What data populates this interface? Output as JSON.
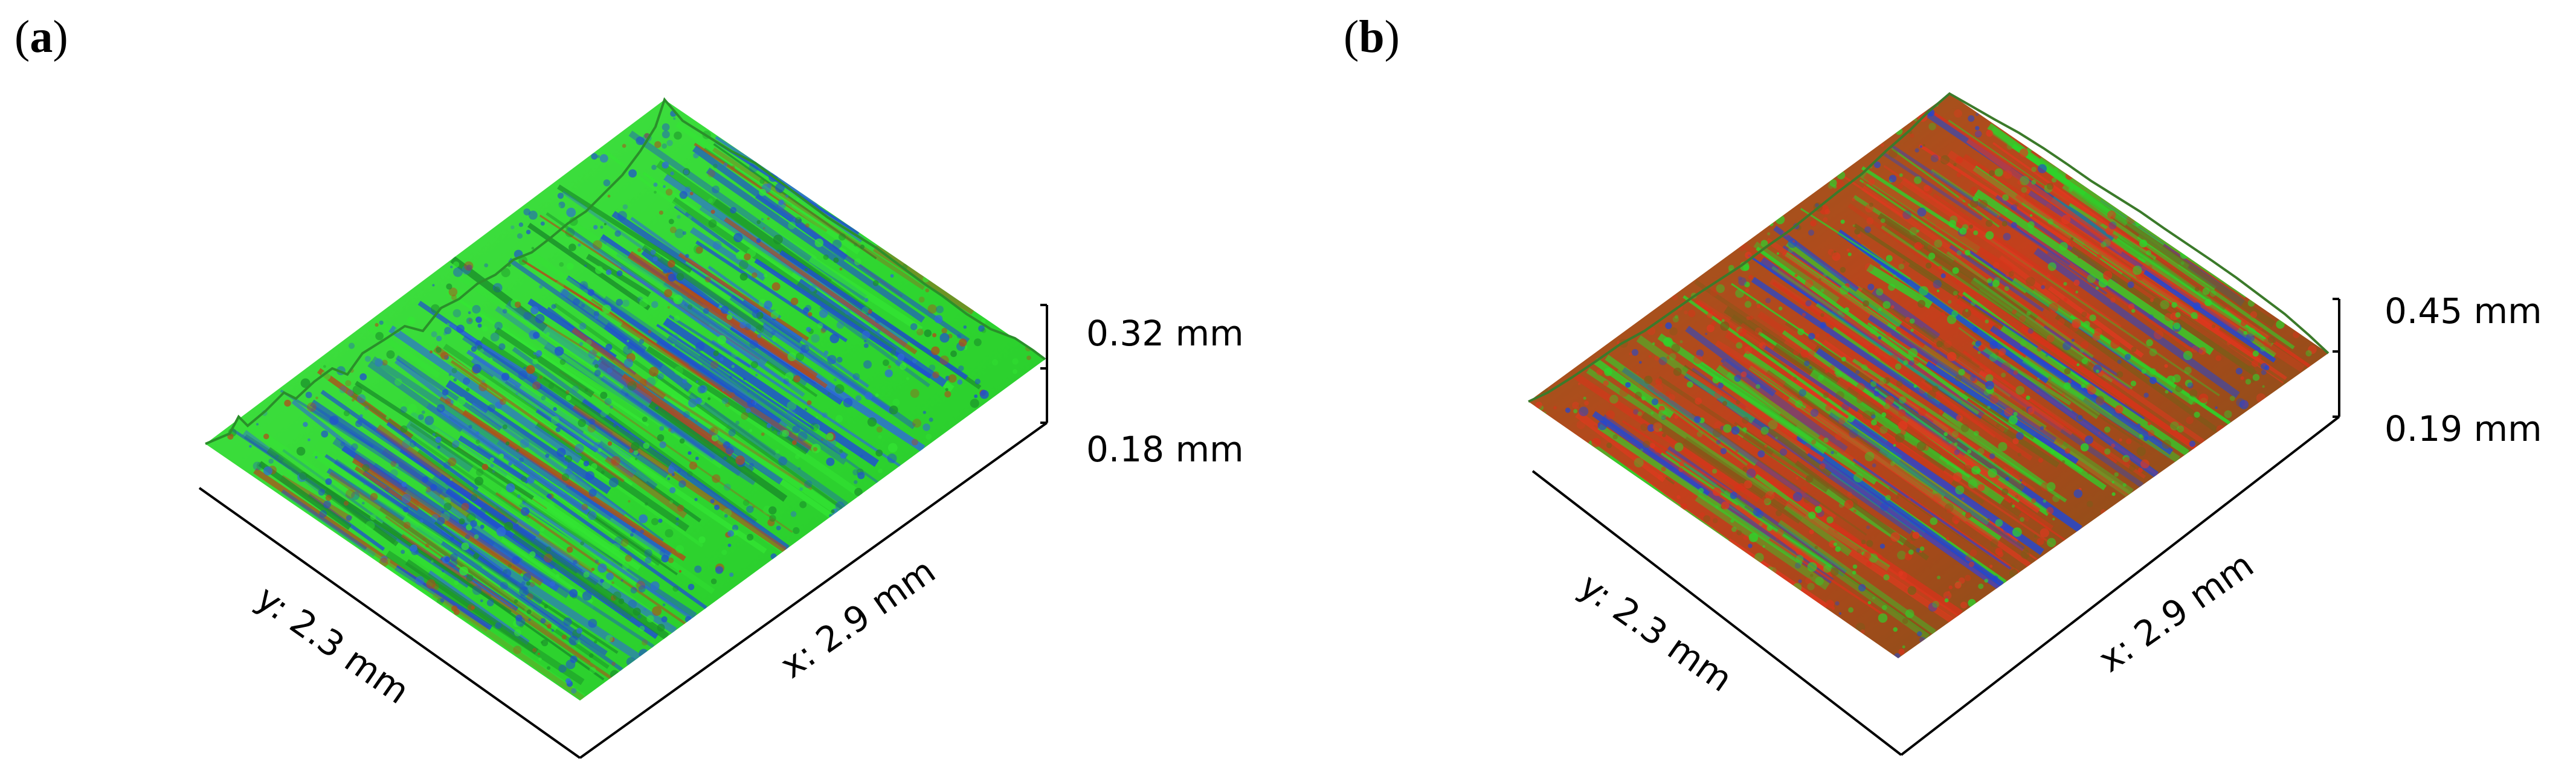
{
  "figure": {
    "panels": [
      {
        "id": "a",
        "label": "a",
        "z_top_label": "0.32 mm",
        "z_bottom_label": "0.18 mm",
        "x_axis_label": "x: 2.9 mm",
        "y_axis_label": "y: 2.3 mm",
        "dominant_colors": {
          "primary": "#33e633",
          "secondary": "#1f4fd1",
          "tertiary": "#b34a1a"
        }
      },
      {
        "id": "b",
        "label": "b",
        "z_top_label": "0.45 mm",
        "z_bottom_label": "0.19 mm",
        "x_axis_label": "x: 2.9 mm",
        "y_axis_label": "y: 2.3 mm",
        "dominant_colors": {
          "primary": "#7a5d18",
          "secondary": "#d8331a",
          "tertiary": "#2bd62b"
        }
      }
    ]
  }
}
